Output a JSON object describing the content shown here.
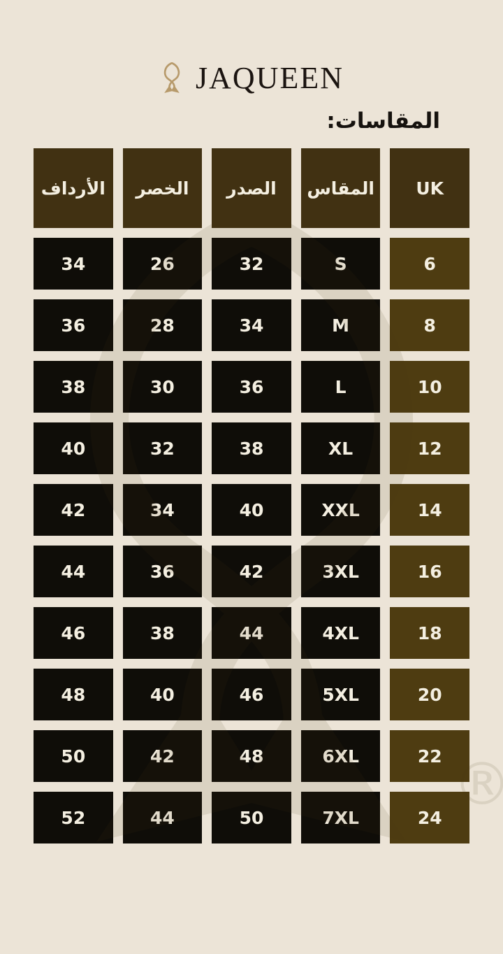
{
  "brand": {
    "name": "JAQUEEN",
    "icon": "jaqueen-monogram-icon"
  },
  "heading": "المقاسات:",
  "table": {
    "headers": [
      {
        "key": "uk",
        "label": "UK"
      },
      {
        "key": "size",
        "label": "المقاس"
      },
      {
        "key": "chest",
        "label": "الصدر"
      },
      {
        "key": "waist",
        "label": "الخصر"
      },
      {
        "key": "hips",
        "label": "الأرداف"
      }
    ],
    "rows": [
      {
        "uk": "6",
        "size": "S",
        "chest": "32",
        "waist": "26",
        "hips": "34"
      },
      {
        "uk": "8",
        "size": "M",
        "chest": "34",
        "waist": "28",
        "hips": "36"
      },
      {
        "uk": "10",
        "size": "L",
        "chest": "36",
        "waist": "30",
        "hips": "38"
      },
      {
        "uk": "12",
        "size": "XL",
        "chest": "38",
        "waist": "32",
        "hips": "40"
      },
      {
        "uk": "14",
        "size": "XXL",
        "chest": "40",
        "waist": "34",
        "hips": "42"
      },
      {
        "uk": "16",
        "size": "3XL",
        "chest": "42",
        "waist": "36",
        "hips": "44"
      },
      {
        "uk": "18",
        "size": "4XL",
        "chest": "44",
        "waist": "38",
        "hips": "46"
      },
      {
        "uk": "20",
        "size": "5XL",
        "chest": "46",
        "waist": "40",
        "hips": "48"
      },
      {
        "uk": "22",
        "size": "6XL",
        "chest": "48",
        "waist": "42",
        "hips": "50"
      },
      {
        "uk": "24",
        "size": "7XL",
        "chest": "50",
        "waist": "44",
        "hips": "52"
      }
    ]
  },
  "watermark": {
    "registered_mark": "®"
  },
  "colors": {
    "background": "#ece4d7",
    "header_cell": "#413112",
    "data_cell": "#0f0d08",
    "uk_cell": "#4e3c11",
    "cell_text": "#f4efe1",
    "logo_gold": "#b79a6b",
    "heading_text": "#16120e"
  },
  "chart_data": {
    "type": "table",
    "title": "المقاسات:",
    "column_order": "right-to-left",
    "columns": [
      "UK",
      "المقاس",
      "الصدر",
      "الخصر",
      "الأرداف"
    ],
    "rows": [
      [
        "6",
        "S",
        "32",
        "26",
        "34"
      ],
      [
        "8",
        "M",
        "34",
        "28",
        "36"
      ],
      [
        "10",
        "L",
        "36",
        "30",
        "38"
      ],
      [
        "12",
        "XL",
        "38",
        "32",
        "40"
      ],
      [
        "14",
        "XXL",
        "40",
        "34",
        "42"
      ],
      [
        "16",
        "3XL",
        "42",
        "36",
        "44"
      ],
      [
        "18",
        "4XL",
        "44",
        "38",
        "46"
      ],
      [
        "20",
        "5XL",
        "46",
        "40",
        "48"
      ],
      [
        "22",
        "6XL",
        "48",
        "42",
        "50"
      ],
      [
        "24",
        "7XL",
        "50",
        "44",
        "52"
      ]
    ]
  }
}
